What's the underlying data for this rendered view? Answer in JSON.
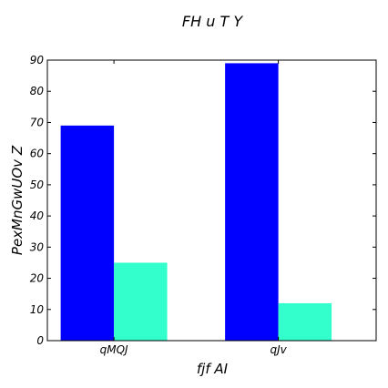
{
  "chart_data": {
    "type": "bar",
    "title": "FH u T  Y",
    "xlabel": "fjf AI",
    "ylabel": "PexMnGwUOv Z",
    "categories": [
      "qMQJ",
      "qJv"
    ],
    "series": [
      {
        "values": [
          69,
          89
        ],
        "color": "#0000ff"
      },
      {
        "values": [
          25,
          12
        ],
        "color": "#33ffcc"
      }
    ],
    "ylim": [
      0,
      90
    ],
    "yticks": [
      0,
      10,
      20,
      30,
      40,
      50,
      60,
      70,
      80,
      90
    ],
    "grid": false,
    "legend": "none"
  }
}
